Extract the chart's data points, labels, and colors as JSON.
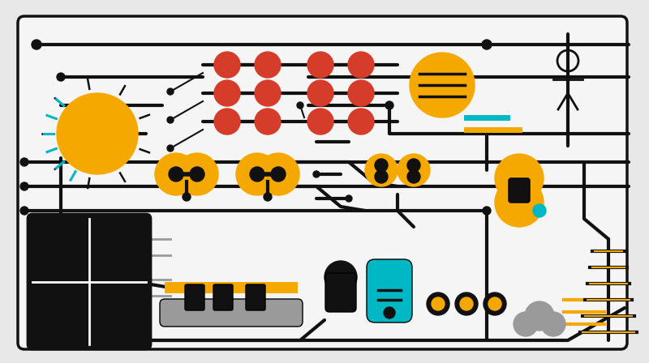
{
  "bg_color": "#e8e8e8",
  "sun_color": "#f5a800",
  "wire_color": "#111111",
  "red_dot_color": "#d63c2a",
  "teal_color": "#00b8c4",
  "gray_color": "#9a9a9a",
  "white_color": "#ffffff"
}
